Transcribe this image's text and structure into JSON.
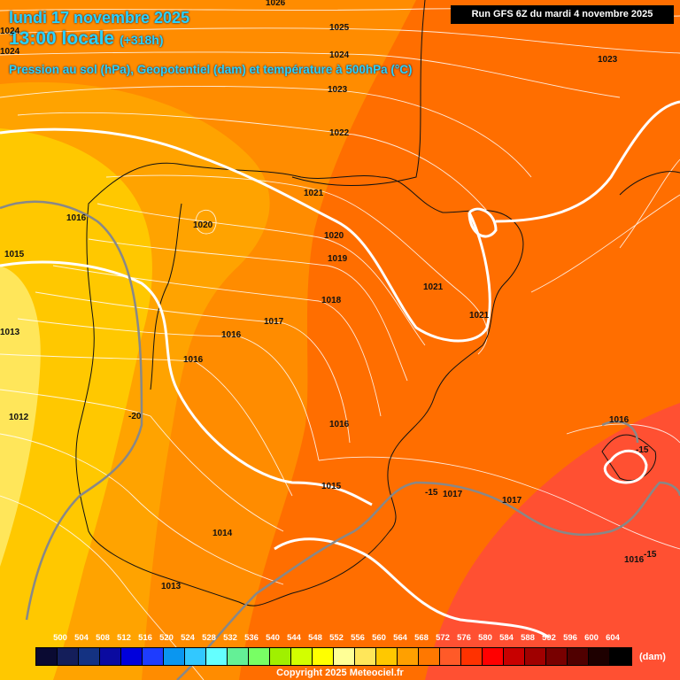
{
  "header": {
    "date": "lundi 17 novembre 2025",
    "time": "13:00 locale",
    "lead": "(+318h)",
    "subtitle": "Pression au sol (hPa), Geopotentiel (dam) et température à 500hPa (°C)",
    "run": "Run GFS 6Z du mardi 4 novembre 2025"
  },
  "isobar_labels": {
    "l1026": "1026",
    "l1025": "1025",
    "l1024": "1024",
    "l1023": "1023",
    "l1023e": "1023",
    "l1022": "1022",
    "l1021a": "1021",
    "l1021b": "1021",
    "l1021c": "1021",
    "l1020a": "1020",
    "l1020b": "1020",
    "l1019": "1019",
    "l1018": "1018",
    "l1017a": "1017",
    "l1017b": "1017",
    "l1017c": "1017",
    "l1016a": "1016",
    "l1016b": "1016",
    "l1016c": "1016",
    "l1016d": "1016",
    "l1016e": "1016",
    "l1016f": "1016",
    "l1015a": "1015",
    "l1015b": "1015",
    "l1014": "1014",
    "l1013a": "1013",
    "l1013b": "1013",
    "l1012": "1012",
    "l1024w": "1024",
    "l1024x": "1024"
  },
  "temp_labels": {
    "t_m20": "-20",
    "t_m15a": "-15",
    "t_m15b": "-15",
    "t_m15c": "-15"
  },
  "legend": {
    "values": [
      "500",
      "504",
      "508",
      "512",
      "516",
      "520",
      "524",
      "528",
      "532",
      "536",
      "540",
      "544",
      "548",
      "552",
      "556",
      "560",
      "564",
      "568",
      "572",
      "576",
      "580",
      "584",
      "588",
      "592",
      "596",
      "600",
      "604"
    ],
    "colors": [
      "#0a0a32",
      "#141e5a",
      "#143282",
      "#0a0aa0",
      "#0000dc",
      "#1e3cff",
      "#0a96f0",
      "#32c8ff",
      "#64ffff",
      "#64f096",
      "#78ff64",
      "#a0f000",
      "#d2ff00",
      "#ffff00",
      "#ffff96",
      "#ffe65a",
      "#ffc800",
      "#ffa000",
      "#ff7800",
      "#ff5a28",
      "#ff3200",
      "#ff0000",
      "#c80000",
      "#a00000",
      "#780000",
      "#500000",
      "#1e0000",
      "#000000"
    ],
    "unit": "(dam)"
  },
  "copyright": "Copyright 2025 Meteociel.fr"
}
